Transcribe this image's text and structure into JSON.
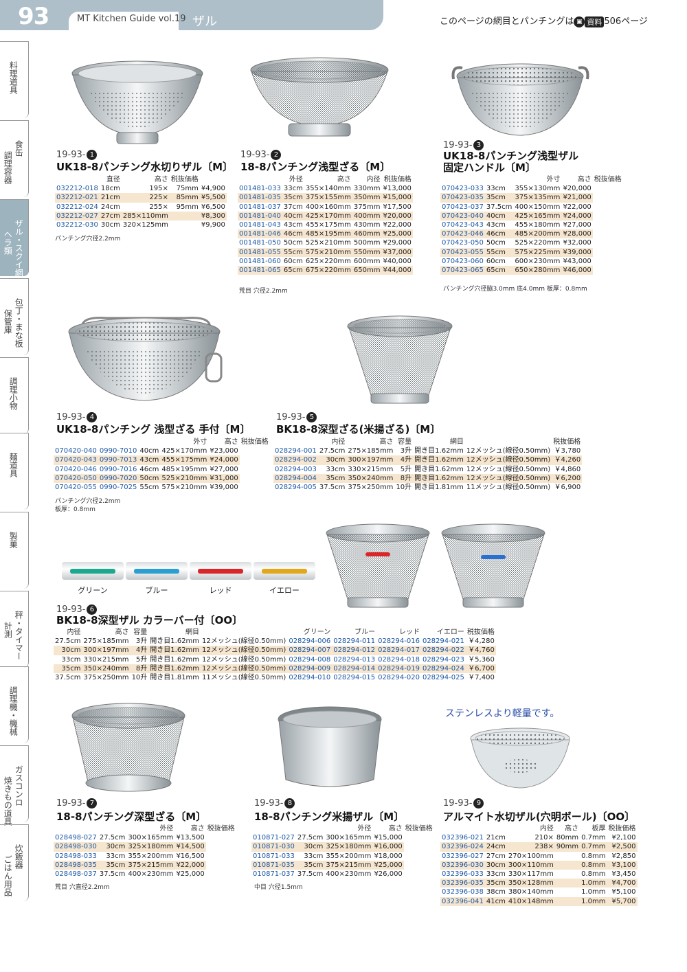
{
  "header": {
    "page_number": "93",
    "guide_title": "MT Kitchen Guide vol.19",
    "category": "ザル",
    "reference_note_before": "このページの網目とパンチングは",
    "reference_badge": "資料",
    "reference_note_after": "506ページ"
  },
  "side_nav": [
    {
      "label": "料理道具",
      "label2": ""
    },
    {
      "label": "食缶",
      "label2": "調理容器"
    },
    {
      "label": "ザル・スクイ網",
      "label2": "ヘラ類"
    },
    {
      "label": "包丁・まな板",
      "label2": "保管庫"
    },
    {
      "label": "調理小物",
      "label2": ""
    },
    {
      "label": "麺道具",
      "label2": ""
    },
    {
      "label": "製菓",
      "label2": ""
    },
    {
      "label": "秤・タイマー",
      "label2": "計測"
    },
    {
      "label": "調理機・機械",
      "label2": ""
    },
    {
      "label": "ガスコンロ",
      "label2": "焼きもの道具"
    },
    {
      "label": "炊飯器",
      "label2": "ごはん用品"
    }
  ],
  "products": {
    "p1": {
      "code_prefix": "19-93-",
      "code_num": "1",
      "title": "UK18-8パンチング水切りザル〔M〕",
      "headers": [
        "",
        "直径",
        "高さ",
        "税抜価格"
      ],
      "rows": [
        [
          "032212-018",
          "18cm",
          "195×",
          "75mm",
          "¥4,900"
        ],
        [
          "032212-021",
          "21cm",
          "225×",
          "85mm",
          "¥5,500"
        ],
        [
          "032212-024",
          "24cm",
          "255×",
          "95mm",
          "¥6,500"
        ],
        [
          "032212-027",
          "27cm",
          "285×110mm",
          "",
          "¥8,300"
        ],
        [
          "032212-030",
          "30cm",
          "320×125mm",
          "",
          "¥9,900"
        ]
      ],
      "note": "パンチング穴径2.2mm"
    },
    "p2": {
      "code_prefix": "19-93-",
      "code_num": "2",
      "title": "18-8パンチング浅型ざる〔M〕",
      "headers": [
        "",
        "外径",
        "高さ",
        "内径",
        "税抜価格"
      ],
      "rows": [
        [
          "001481-033",
          "33cm",
          "355×140mm",
          "330mm",
          "¥13,000"
        ],
        [
          "001481-035",
          "35cm",
          "375×155mm",
          "350mm",
          "¥15,000"
        ],
        [
          "001481-037",
          "37cm",
          "400×160mm",
          "375mm",
          "¥17,500"
        ],
        [
          "001481-040",
          "40cm",
          "425×170mm",
          "400mm",
          "¥20,000"
        ],
        [
          "001481-043",
          "43cm",
          "455×175mm",
          "430mm",
          "¥22,000"
        ],
        [
          "001481-046",
          "46cm",
          "485×195mm",
          "460mm",
          "¥25,000"
        ],
        [
          "001481-050",
          "50cm",
          "525×210mm",
          "500mm",
          "¥29,000"
        ],
        [
          "001481-055",
          "55cm",
          "575×210mm",
          "550mm",
          "¥37,000"
        ],
        [
          "001481-060",
          "60cm",
          "625×220mm",
          "600mm",
          "¥40,000"
        ],
        [
          "001481-065",
          "65cm",
          "675×220mm",
          "650mm",
          "¥44,000"
        ]
      ],
      "note": "荒目 穴径2.2mm"
    },
    "p3": {
      "code_prefix": "19-93-",
      "code_num": "3",
      "title": "UK18-8パンチング浅型ザル",
      "title2": "固定ハンドル〔M〕",
      "headers": [
        "",
        "",
        "外寸",
        "高さ",
        "税抜価格"
      ],
      "rows": [
        [
          "070423-033",
          "33cm",
          "355×130mm",
          "¥20,000"
        ],
        [
          "070423-035",
          "35cm",
          "375×135mm",
          "¥21,000"
        ],
        [
          "070423-037",
          "37.5cm",
          "400×150mm",
          "¥22,000"
        ],
        [
          "070423-040",
          "40cm",
          "425×165mm",
          "¥24,000"
        ],
        [
          "070423-043",
          "43cm",
          "455×180mm",
          "¥27,000"
        ],
        [
          "070423-046",
          "46cm",
          "485×200mm",
          "¥28,000"
        ],
        [
          "070423-050",
          "50cm",
          "525×220mm",
          "¥32,000"
        ],
        [
          "070423-055",
          "55cm",
          "575×225mm",
          "¥39,000"
        ],
        [
          "070423-060",
          "60cm",
          "600×230mm",
          "¥43,000"
        ],
        [
          "070423-065",
          "65cm",
          "650×280mm",
          "¥46,000"
        ]
      ],
      "note": "パンチング穴径脇3.0mm 底4.0mm 板厚：0.8mm"
    },
    "p4": {
      "code_prefix": "19-93-",
      "code_num": "4",
      "title": "UK18-8パンチング 浅型ざる 手付〔M〕",
      "headers": [
        "",
        "",
        "",
        "外寸",
        "高さ",
        "税抜価格"
      ],
      "rows": [
        [
          "070420-040",
          "0990-7010",
          "40cm",
          "425×170mm",
          "¥23,000"
        ],
        [
          "070420-043",
          "0990-7013",
          "43cm",
          "455×175mm",
          "¥24,000"
        ],
        [
          "070420-046",
          "0990-7016",
          "46cm",
          "485×195mm",
          "¥27,000"
        ],
        [
          "070420-050",
          "0990-7020",
          "50cm",
          "525×210mm",
          "¥31,000"
        ],
        [
          "070420-055",
          "0990-7025",
          "55cm",
          "575×210mm",
          "¥39,000"
        ]
      ],
      "note": "パンチング穴径2.2mm",
      "note2": "板厚：0.8mm"
    },
    "p5": {
      "code_prefix": "19-93-",
      "code_num": "5",
      "title": "BK18-8深型ざる(米揚ざる)〔M〕",
      "headers": [
        "",
        "内径",
        "高さ",
        "容量",
        "網目",
        "",
        "税抜価格"
      ],
      "rows": [
        [
          "028294-001",
          "27.5cm",
          "275×185mm",
          "3升",
          "開き目1.62mm",
          "12メッシュ(線径0.50mm)",
          "￥3,780"
        ],
        [
          "028294-002",
          "30cm",
          "300×197mm",
          "4升",
          "開き目1.62mm",
          "12メッシュ(線径0.50mm)",
          "￥4,260"
        ],
        [
          "028294-003",
          "33cm",
          "330×215mm",
          "5升",
          "開き目1.62mm",
          "12メッシュ(線径0.50mm)",
          "￥4,860"
        ],
        [
          "028294-004",
          "35cm",
          "350×240mm",
          "8升",
          "開き目1.62mm",
          "12メッシュ(線径0.50mm)",
          "￥6,200"
        ],
        [
          "028294-005",
          "37.5cm",
          "375×250mm",
          "10升",
          "開き目1.81mm",
          "11メッシュ(線径0.50mm)",
          "￥6,900"
        ]
      ]
    },
    "p6": {
      "code_prefix": "19-93-",
      "code_num": "6",
      "title": "BK18-8深型ザル カラーバー付〔OO〕",
      "swatches": [
        {
          "label": "グリーン",
          "color": "#1aa88f"
        },
        {
          "label": "ブルー",
          "color": "#2b9fd0"
        },
        {
          "label": "レッド",
          "color": "#d9262a"
        },
        {
          "label": "イエロー",
          "color": "#e0a81a"
        }
      ],
      "headers": [
        "内径",
        "高さ",
        "容量",
        "網目",
        "",
        "グリーン",
        "ブルー",
        "レッド",
        "イエロー",
        "税抜価格"
      ],
      "rows": [
        [
          "27.5cm",
          "275×185mm",
          "3升",
          "開き目1.62mm",
          "12メッシュ(線径0.50mm)",
          "028294-006",
          "028294-011",
          "028294-016",
          "028294-021",
          "￥4,280"
        ],
        [
          "30cm",
          "300×197mm",
          "4升",
          "開き目1.62mm",
          "12メッシュ(線径0.50mm)",
          "028294-007",
          "028294-012",
          "028294-017",
          "028294-022",
          "￥4,760"
        ],
        [
          "33cm",
          "330×215mm",
          "5升",
          "開き目1.62mm",
          "12メッシュ(線径0.50mm)",
          "028294-008",
          "028294-013",
          "028294-018",
          "028294-023",
          "￥5,360"
        ],
        [
          "35cm",
          "350×240mm",
          "8升",
          "開き目1.62mm",
          "12メッシュ(線径0.50mm)",
          "028294-009",
          "028294-014",
          "028294-019",
          "028294-024",
          "￥6,700"
        ],
        [
          "37.5cm",
          "375×250mm",
          "10升",
          "開き目1.81mm",
          "11メッシュ(線径0.50mm)",
          "028294-010",
          "028294-015",
          "028294-020",
          "028294-025",
          "￥7,400"
        ]
      ]
    },
    "p7": {
      "code_prefix": "19-93-",
      "code_num": "7",
      "title": "18-8パンチング深型ざる〔M〕",
      "headers": [
        "",
        "",
        "外径",
        "高さ",
        "税抜価格"
      ],
      "rows": [
        [
          "028498-027",
          "27.5cm",
          "300×165mm",
          "¥13,500"
        ],
        [
          "028498-030",
          "30cm",
          "325×180mm",
          "¥14,500"
        ],
        [
          "028498-033",
          "33cm",
          "355×200mm",
          "¥16,500"
        ],
        [
          "028498-035",
          "35cm",
          "375×215mm",
          "¥22,000"
        ],
        [
          "028498-037",
          "37.5cm",
          "400×230mm",
          "¥25,000"
        ]
      ],
      "note": "荒目 穴直径2.2mm"
    },
    "p8": {
      "code_prefix": "19-93-",
      "code_num": "8",
      "title": "18-8パンチング米揚ザル〔M〕",
      "headers": [
        "",
        "",
        "外径",
        "高さ",
        "税抜価格"
      ],
      "rows": [
        [
          "010871-027",
          "27.5cm",
          "300×165mm",
          "¥15,000"
        ],
        [
          "010871-030",
          "30cm",
          "325×180mm",
          "¥16,000"
        ],
        [
          "010871-033",
          "33cm",
          "355×200mm",
          "¥18,000"
        ],
        [
          "010871-035",
          "35cm",
          "375×215mm",
          "¥25,000"
        ],
        [
          "010871-037",
          "37.5cm",
          "400×230mm",
          "¥26,000"
        ]
      ],
      "note": "中目 穴径1.5mm"
    },
    "p9": {
      "code_prefix": "19-93-",
      "code_num": "9",
      "title": "アルマイト水切ザル(穴明ボール)〔OO〕",
      "promo": "ステンレスより軽量です。",
      "headers": [
        "",
        "",
        "内径",
        "高さ",
        "板厚",
        "税抜価格"
      ],
      "rows": [
        [
          "032396-021",
          "21cm",
          "210×",
          "80mm",
          "0.7mm",
          "¥2,100"
        ],
        [
          "032396-024",
          "24cm",
          "238×",
          "90mm",
          "0.7mm",
          "¥2,500"
        ],
        [
          "032396-027",
          "27cm",
          "270×100mm",
          "",
          "0.8mm",
          "¥2,850"
        ],
        [
          "032396-030",
          "30cm",
          "300×110mm",
          "",
          "0.8mm",
          "¥3,100"
        ],
        [
          "032396-033",
          "33cm",
          "330×117mm",
          "",
          "0.8mm",
          "¥3,450"
        ],
        [
          "032396-035",
          "35cm",
          "350×128mm",
          "",
          "1.0mm",
          "¥4,700"
        ],
        [
          "032396-038",
          "38cm",
          "380×140mm",
          "",
          "1.0mm",
          "¥5,100"
        ],
        [
          "032396-041",
          "41cm",
          "410×148mm",
          "",
          "1.0mm",
          "¥5,700"
        ]
      ]
    }
  },
  "colors": {
    "header_bar": "#aebfc9",
    "code_blue": "#1c58a6",
    "row_highlight": "#f6e6cf",
    "promo_blue": "#2a4fa8"
  }
}
